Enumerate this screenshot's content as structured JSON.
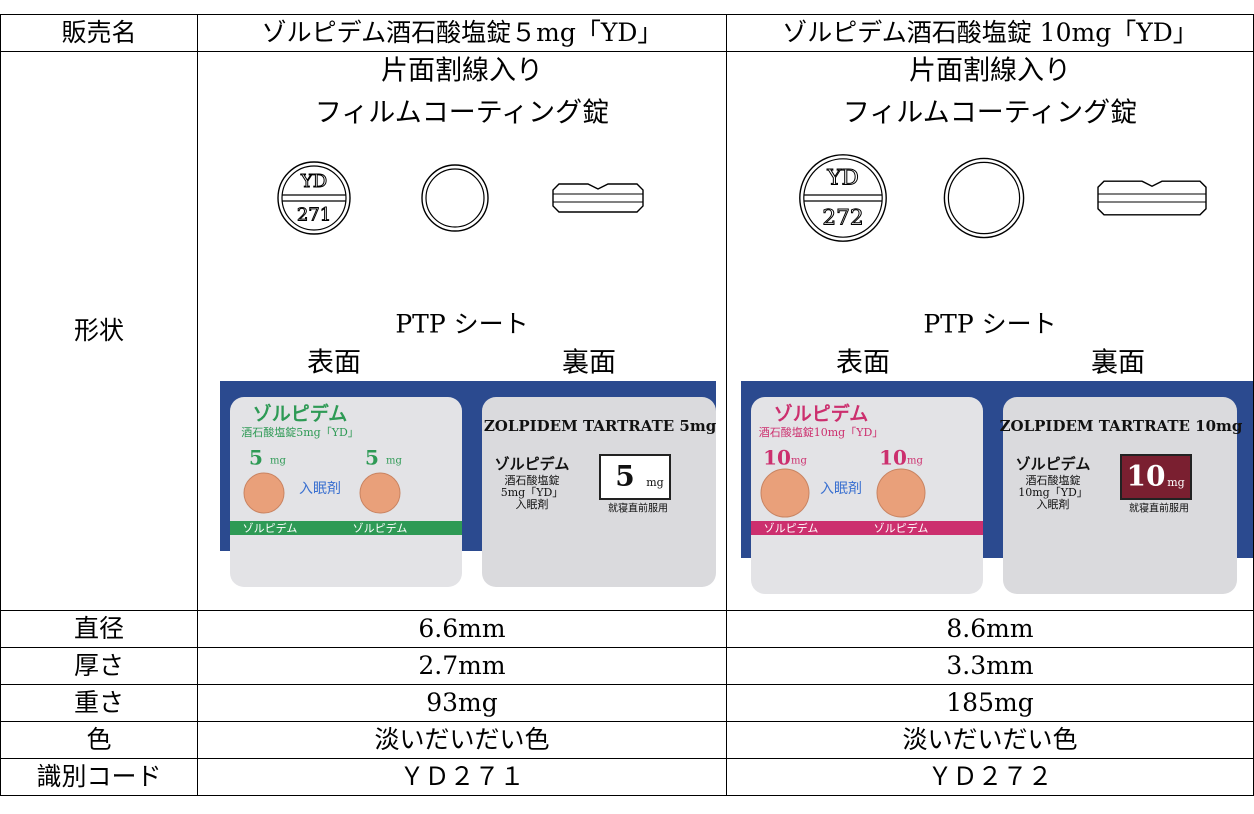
{
  "table": {
    "header": [
      "販売名",
      "ゾルピデム酒石酸塩錠５mg「YD」",
      "ゾルピデム酒石酸塩錠 10mg「YD」"
    ],
    "shape": {
      "label": "形状",
      "products": [
        {
          "scoring": "片面割線入り",
          "coating": "フィルムコーティング錠",
          "imprint_top": "YD",
          "imprint_bottom": "271",
          "ptp": "PTP シート",
          "front": "表面",
          "back": "裏面",
          "pill_scale": 1,
          "accent": "#2e9a55",
          "photo": {
            "brand": "ゾルピデム",
            "name": "酒石酸塩錠5mg「YD」",
            "strength": "5",
            "unit": "mg",
            "category": "入眠剤",
            "back_title": "ZOLPIDEM TARTRATE 5mg",
            "back_name": "酒石酸塩錠",
            "back_dose": "5mg「YD」",
            "usage": "就寝直前服用"
          }
        },
        {
          "scoring": "片面割線入り",
          "coating": "フィルムコーティング錠",
          "imprint_top": "YD",
          "imprint_bottom": "272",
          "ptp": "PTP シート",
          "front": "表面",
          "back": "裏面",
          "pill_scale": 1.2,
          "accent": "#cc2f6e",
          "photo": {
            "brand": "ゾルピデム",
            "name": "酒石酸塩錠10mg「YD」",
            "strength": "10",
            "unit": "mg",
            "category": "入眠剤",
            "back_title": "ZOLPIDEM TARTRATE 10mg",
            "back_name": "酒石酸塩錠",
            "back_dose": "10mg「YD」",
            "usage": "就寝直前服用"
          }
        }
      ]
    },
    "rows": [
      [
        "直径",
        "6.6mm",
        "8.6mm"
      ],
      [
        "厚さ",
        "2.7mm",
        "3.3mm"
      ],
      [
        "重さ",
        "93mg",
        "185mg"
      ],
      [
        "色",
        "淡いだいだい色",
        "淡いだいだい色"
      ],
      [
        "識別コード",
        "ＹＤ２７１",
        "ＹＤ２７２"
      ]
    ]
  }
}
